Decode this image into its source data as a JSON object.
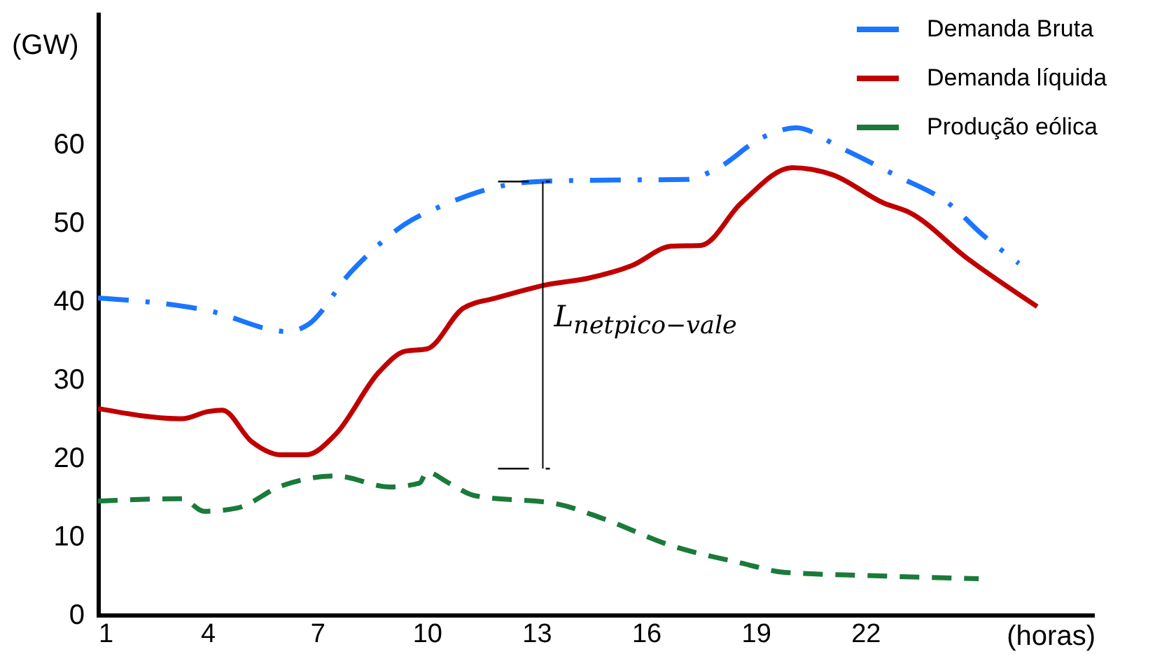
{
  "chart_data": {
    "type": "line",
    "xlabel": "(horas)",
    "ylabel": "(GW)",
    "xlim": [
      1,
      28.2
    ],
    "xticks": [
      1,
      4,
      7,
      10,
      13,
      16,
      19,
      22
    ],
    "ylim": [
      0,
      76.6
    ],
    "yticks": [
      0,
      10,
      20,
      30,
      40,
      50,
      60
    ],
    "grid": false,
    "legend": "top right",
    "marker": "none",
    "annotations": [
      "L$_{net}$$_{pico−vale}$"
    ],
    "series": [
      {
        "name": "Demanda Bruta",
        "color": "#1a75ff",
        "line_style": "dashdot",
        "x": [
          1,
          4,
          6.2,
          6.75,
          7.9,
          9.4,
          10.6,
          11.7,
          12.9,
          14.4,
          17.1,
          17.9,
          19.2,
          20.1,
          21.3,
          22.8,
          24.4,
          25.1,
          26.2
        ],
        "values": [
          40.4,
          38.8,
          36.1,
          37,
          43.6,
          49.8,
          52.5,
          54.3,
          55.2,
          55.4,
          55.5,
          56.8,
          60.9,
          62.1,
          59.6,
          56.1,
          52,
          48.9,
          44.8
        ]
      },
      {
        "name": "Demanda líquida",
        "color": "#c00000",
        "line_style": "solid",
        "x": [
          1,
          3.3,
          4,
          4.4,
          5.2,
          6,
          6.7,
          7.5,
          8.7,
          9.4,
          10,
          11,
          11.9,
          13.3,
          14.4,
          15.6,
          16.7,
          17.5,
          18.6,
          20,
          21.1,
          22.5,
          23.2,
          24.8,
          26.7
        ],
        "values": [
          26.3,
          25,
          25.9,
          26.1,
          22.1,
          20.4,
          20.4,
          23,
          31,
          33.6,
          33.9,
          39.1,
          40.4,
          42.1,
          42.9,
          44.5,
          47,
          47.1,
          52.5,
          57,
          56.1,
          52.5,
          51.3,
          45.4,
          39.3
        ]
      },
      {
        "name": "Produção eólica",
        "color": "#1a7a3a",
        "line_style": "dashed",
        "x": [
          1,
          3.3,
          3.9,
          4.8,
          6,
          7.5,
          9,
          9.8,
          10,
          10.6,
          11.3,
          13.6,
          14.8,
          16.7,
          18.6,
          19.8,
          22.1,
          25.1
        ],
        "values": [
          14.5,
          14.8,
          13.2,
          13.6,
          16.4,
          17.7,
          16.3,
          16.8,
          18.2,
          16.8,
          15.2,
          14.1,
          12.3,
          8.8,
          6.6,
          5.4,
          5,
          4.6
        ]
      }
    ]
  }
}
